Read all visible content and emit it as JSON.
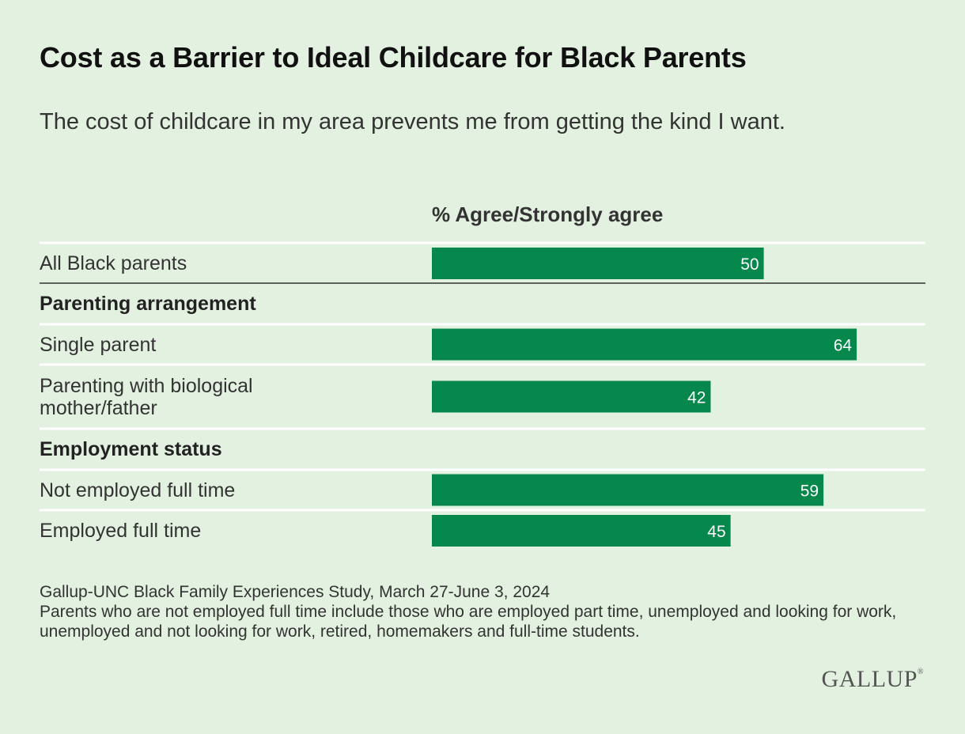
{
  "title": "Cost as a Barrier to Ideal Childcare for Black Parents",
  "subtitle": "The cost of childcare in my area prevents me from getting the kind I want.",
  "column_header": "% Agree/Strongly agree",
  "source_line": "Gallup-UNC Black Family Experiences Study, March 27-June 3, 2024",
  "note": "Parents who are not employed full time include those who are employed part time, unemployed and looking for work, unemployed and not looking for work, retired, homemakers and full-time students.",
  "logo_text": "GALLUP",
  "colors": {
    "bar": "#06874b",
    "background": "#e3f1e0",
    "rule": "#ffffff",
    "dark_rule": "#333333"
  },
  "chart_data": {
    "type": "bar",
    "orientation": "horizontal",
    "title": "Cost as a Barrier to Ideal Childcare for Black Parents",
    "series": [
      {
        "name": "% Agree/Strongly agree",
        "values": [
          50,
          64,
          42,
          59,
          45
        ]
      }
    ],
    "categories": [
      "All Black parents",
      "Single parent",
      "Parenting with biological mother/father",
      "Not employed full time",
      "Employed full time"
    ],
    "groups": [
      {
        "label": "",
        "rows": [
          {
            "label": "All Black parents",
            "value": 50
          }
        ]
      },
      {
        "label": "Parenting arrangement",
        "rows": [
          {
            "label": "Single parent",
            "value": 64
          },
          {
            "label": "Parenting with biological mother/father",
            "value": 42
          }
        ]
      },
      {
        "label": "Employment status",
        "rows": [
          {
            "label": "Not employed full time",
            "value": 59
          },
          {
            "label": "Employed full time",
            "value": 45
          }
        ]
      }
    ],
    "xlim": [
      0,
      74
    ],
    "grid": false,
    "data_labels": true
  }
}
